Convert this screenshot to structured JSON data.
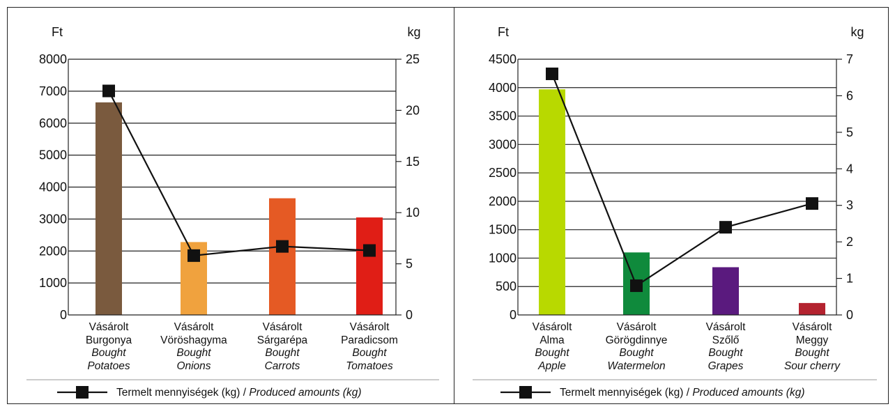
{
  "charts": [
    {
      "left_unit": "Ft",
      "right_unit": "kg",
      "legend": {
        "label_hu": "Termelt mennyiségek (kg) /",
        "label_en": "Produced amounts (kg)"
      }
    },
    {
      "left_unit": "Ft",
      "right_unit": "kg",
      "legend": {
        "label_hu": "Termelt mennyiségek (kg) /",
        "label_en": "Produced amounts (kg)"
      }
    }
  ],
  "chart_data": [
    {
      "type": "bar",
      "categories": [
        {
          "hu1": "Vásárolt",
          "hu2": "Burgonya",
          "en1": "Bought",
          "en2": "Potatoes"
        },
        {
          "hu1": "Vásárolt",
          "hu2": "Vöröshagyma",
          "en1": "Bought",
          "en2": "Onions"
        },
        {
          "hu1": "Vásárolt",
          "hu2": "Sárgarépa",
          "en1": "Bought",
          "en2": "Carrots"
        },
        {
          "hu1": "Vásárolt",
          "hu2": "Paradicsom",
          "en1": "Bought",
          "en2": "Tomatoes"
        }
      ],
      "bar_values": [
        6650,
        2280,
        3650,
        3050
      ],
      "bar_colors": [
        "#7a5a3e",
        "#f0a23e",
        "#e55a24",
        "#e01e16"
      ],
      "line_series": {
        "name": "Termelt mennyiségek (kg) / Produced amounts (kg)",
        "values": [
          21.9,
          5.8,
          6.7,
          6.3
        ],
        "color": "#111111"
      },
      "y_left": {
        "unit": "Ft",
        "min": 0,
        "max": 8000,
        "ticks": [
          0,
          1000,
          2000,
          3000,
          4000,
          5000,
          6000,
          7000,
          8000
        ]
      },
      "y_right": {
        "unit": "kg",
        "min": 0,
        "max": 25,
        "ticks": [
          0,
          5,
          10,
          15,
          20,
          25
        ]
      },
      "grid": true,
      "legend_position": "bottom"
    },
    {
      "type": "bar",
      "categories": [
        {
          "hu1": "Vásárolt",
          "hu2": "Alma",
          "en1": "Bought",
          "en2": "Apple"
        },
        {
          "hu1": "Vásárolt",
          "hu2": "Görögdinnye",
          "en1": "Bought",
          "en2": "Watermelon"
        },
        {
          "hu1": "Vásárolt",
          "hu2": "Szőlő",
          "en1": "Bought",
          "en2": "Grapes"
        },
        {
          "hu1": "Vásárolt",
          "hu2": "Meggy",
          "en1": "Bought",
          "en2": "Sour cherry"
        }
      ],
      "bar_values": [
        3970,
        1100,
        840,
        210
      ],
      "bar_colors": [
        "#b8d900",
        "#0f8a3c",
        "#5a1a7e",
        "#b4232f"
      ],
      "line_series": {
        "name": "Termelt mennyiségek (kg) / Produced amounts (kg)",
        "values": [
          6.6,
          0.8,
          2.4,
          3.05
        ],
        "color": "#111111"
      },
      "y_left": {
        "unit": "Ft",
        "min": 0,
        "max": 4500,
        "ticks": [
          0,
          500,
          1000,
          1500,
          2000,
          2500,
          3000,
          3500,
          4000,
          4500
        ]
      },
      "y_right": {
        "unit": "kg",
        "min": 0,
        "max": 7,
        "ticks": [
          0,
          1,
          2,
          3,
          4,
          5,
          6,
          7
        ]
      },
      "grid": true,
      "legend_position": "bottom"
    }
  ]
}
